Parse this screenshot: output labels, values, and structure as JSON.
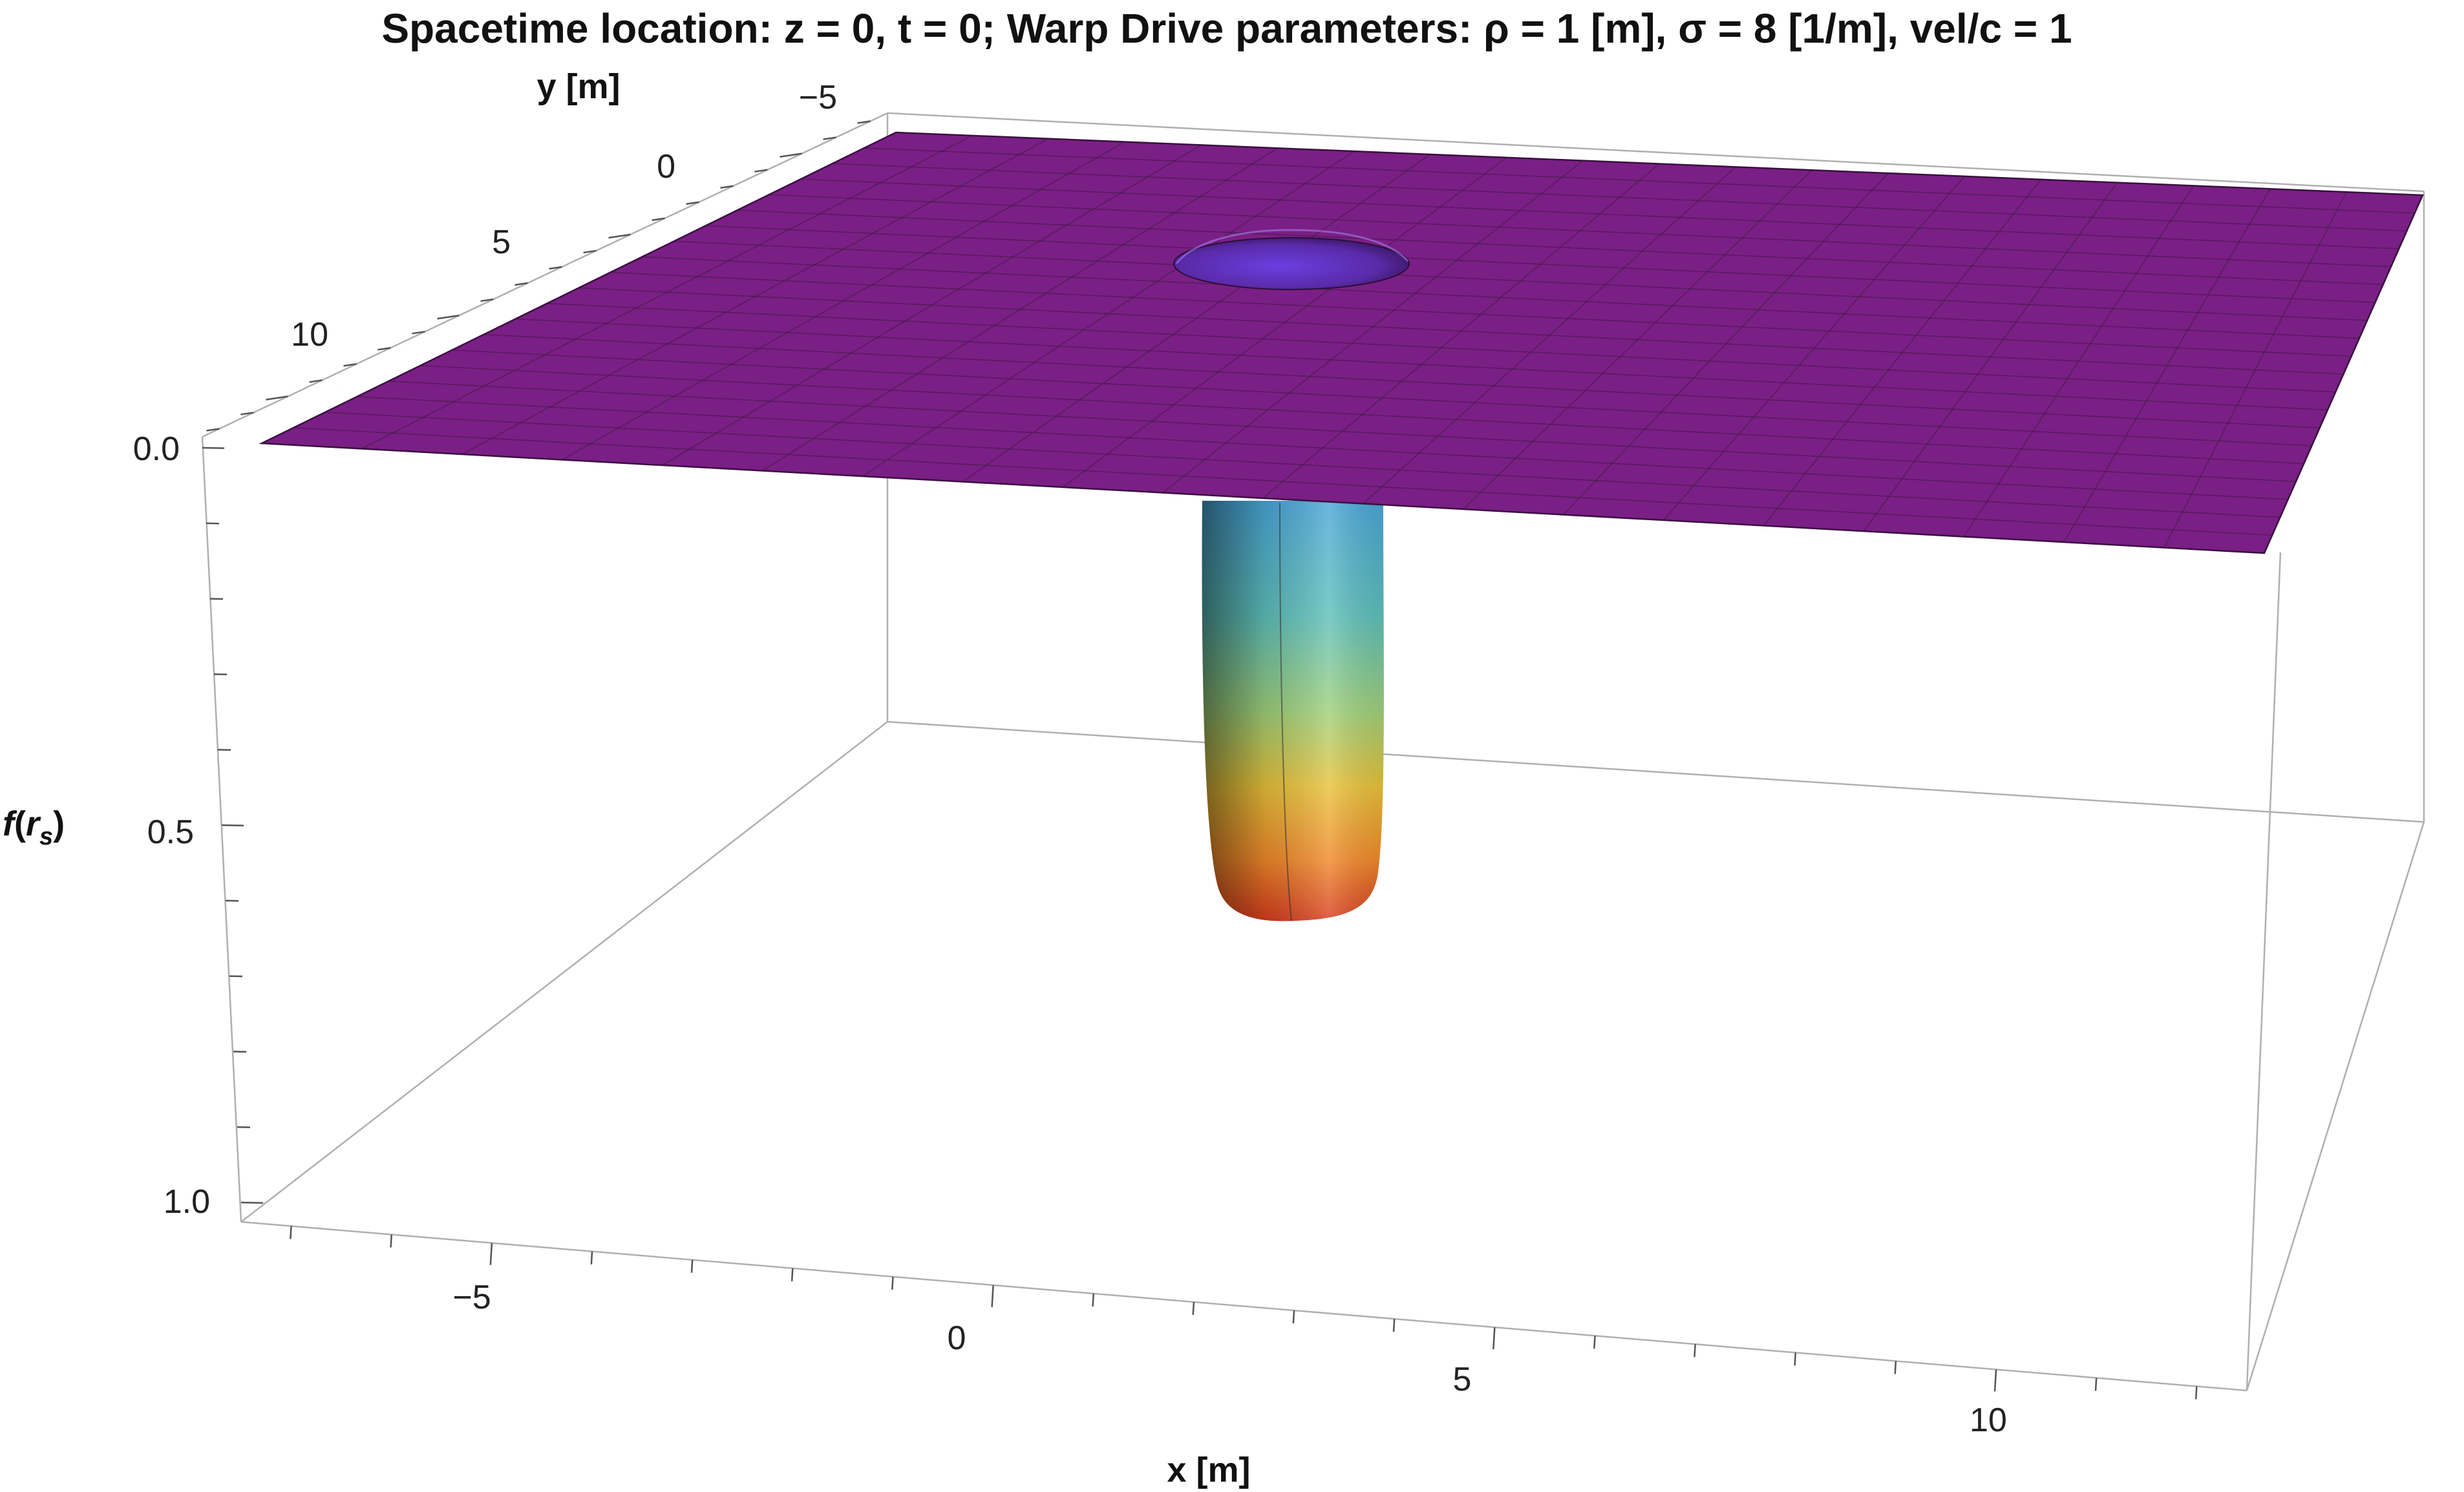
{
  "chart_data": {
    "type": "surface3d",
    "title": "Spacetime location:  z = 0, t = 0;   Warp Drive parameters: ρ = 1 [m], σ = 8 [1/m], vel/c = 1",
    "xlabel": "x [m]",
    "ylabel": "y [m]",
    "zlabel": "f(r_s)",
    "zlabel_main": "f",
    "zlabel_open": "(",
    "zlabel_sub_base": "r",
    "zlabel_sub": "s",
    "zlabel_close": ")",
    "x_ticks": [
      "−5",
      "0",
      "5",
      "10"
    ],
    "x_tick_values": [
      -5,
      0,
      5,
      10
    ],
    "y_ticks": [
      "−5",
      "0",
      "5",
      "10"
    ],
    "y_tick_values": [
      -5,
      0,
      5,
      10
    ],
    "z_ticks": [
      "0.0",
      "0.5",
      "1.0"
    ],
    "z_tick_values": [
      0.0,
      0.5,
      1.0
    ],
    "xlim": [
      -7.5,
      12.5
    ],
    "ylim": [
      -7.5,
      12.5
    ],
    "zlim": [
      0.0,
      1.0
    ],
    "z_axis_reversed": true,
    "surface": {
      "baseline": 0.0,
      "bubble_center": [
        3,
        0
      ],
      "bubble_depth": 0.61,
      "mesh": "on",
      "color_flat": "#7a1f85",
      "colormap": [
        "#6f3fd0",
        "#4aa6d8",
        "#7fcf8a",
        "#e8c23a",
        "#f08a2a",
        "#d63c1e"
      ]
    },
    "box_color": "#b0b0b0"
  }
}
